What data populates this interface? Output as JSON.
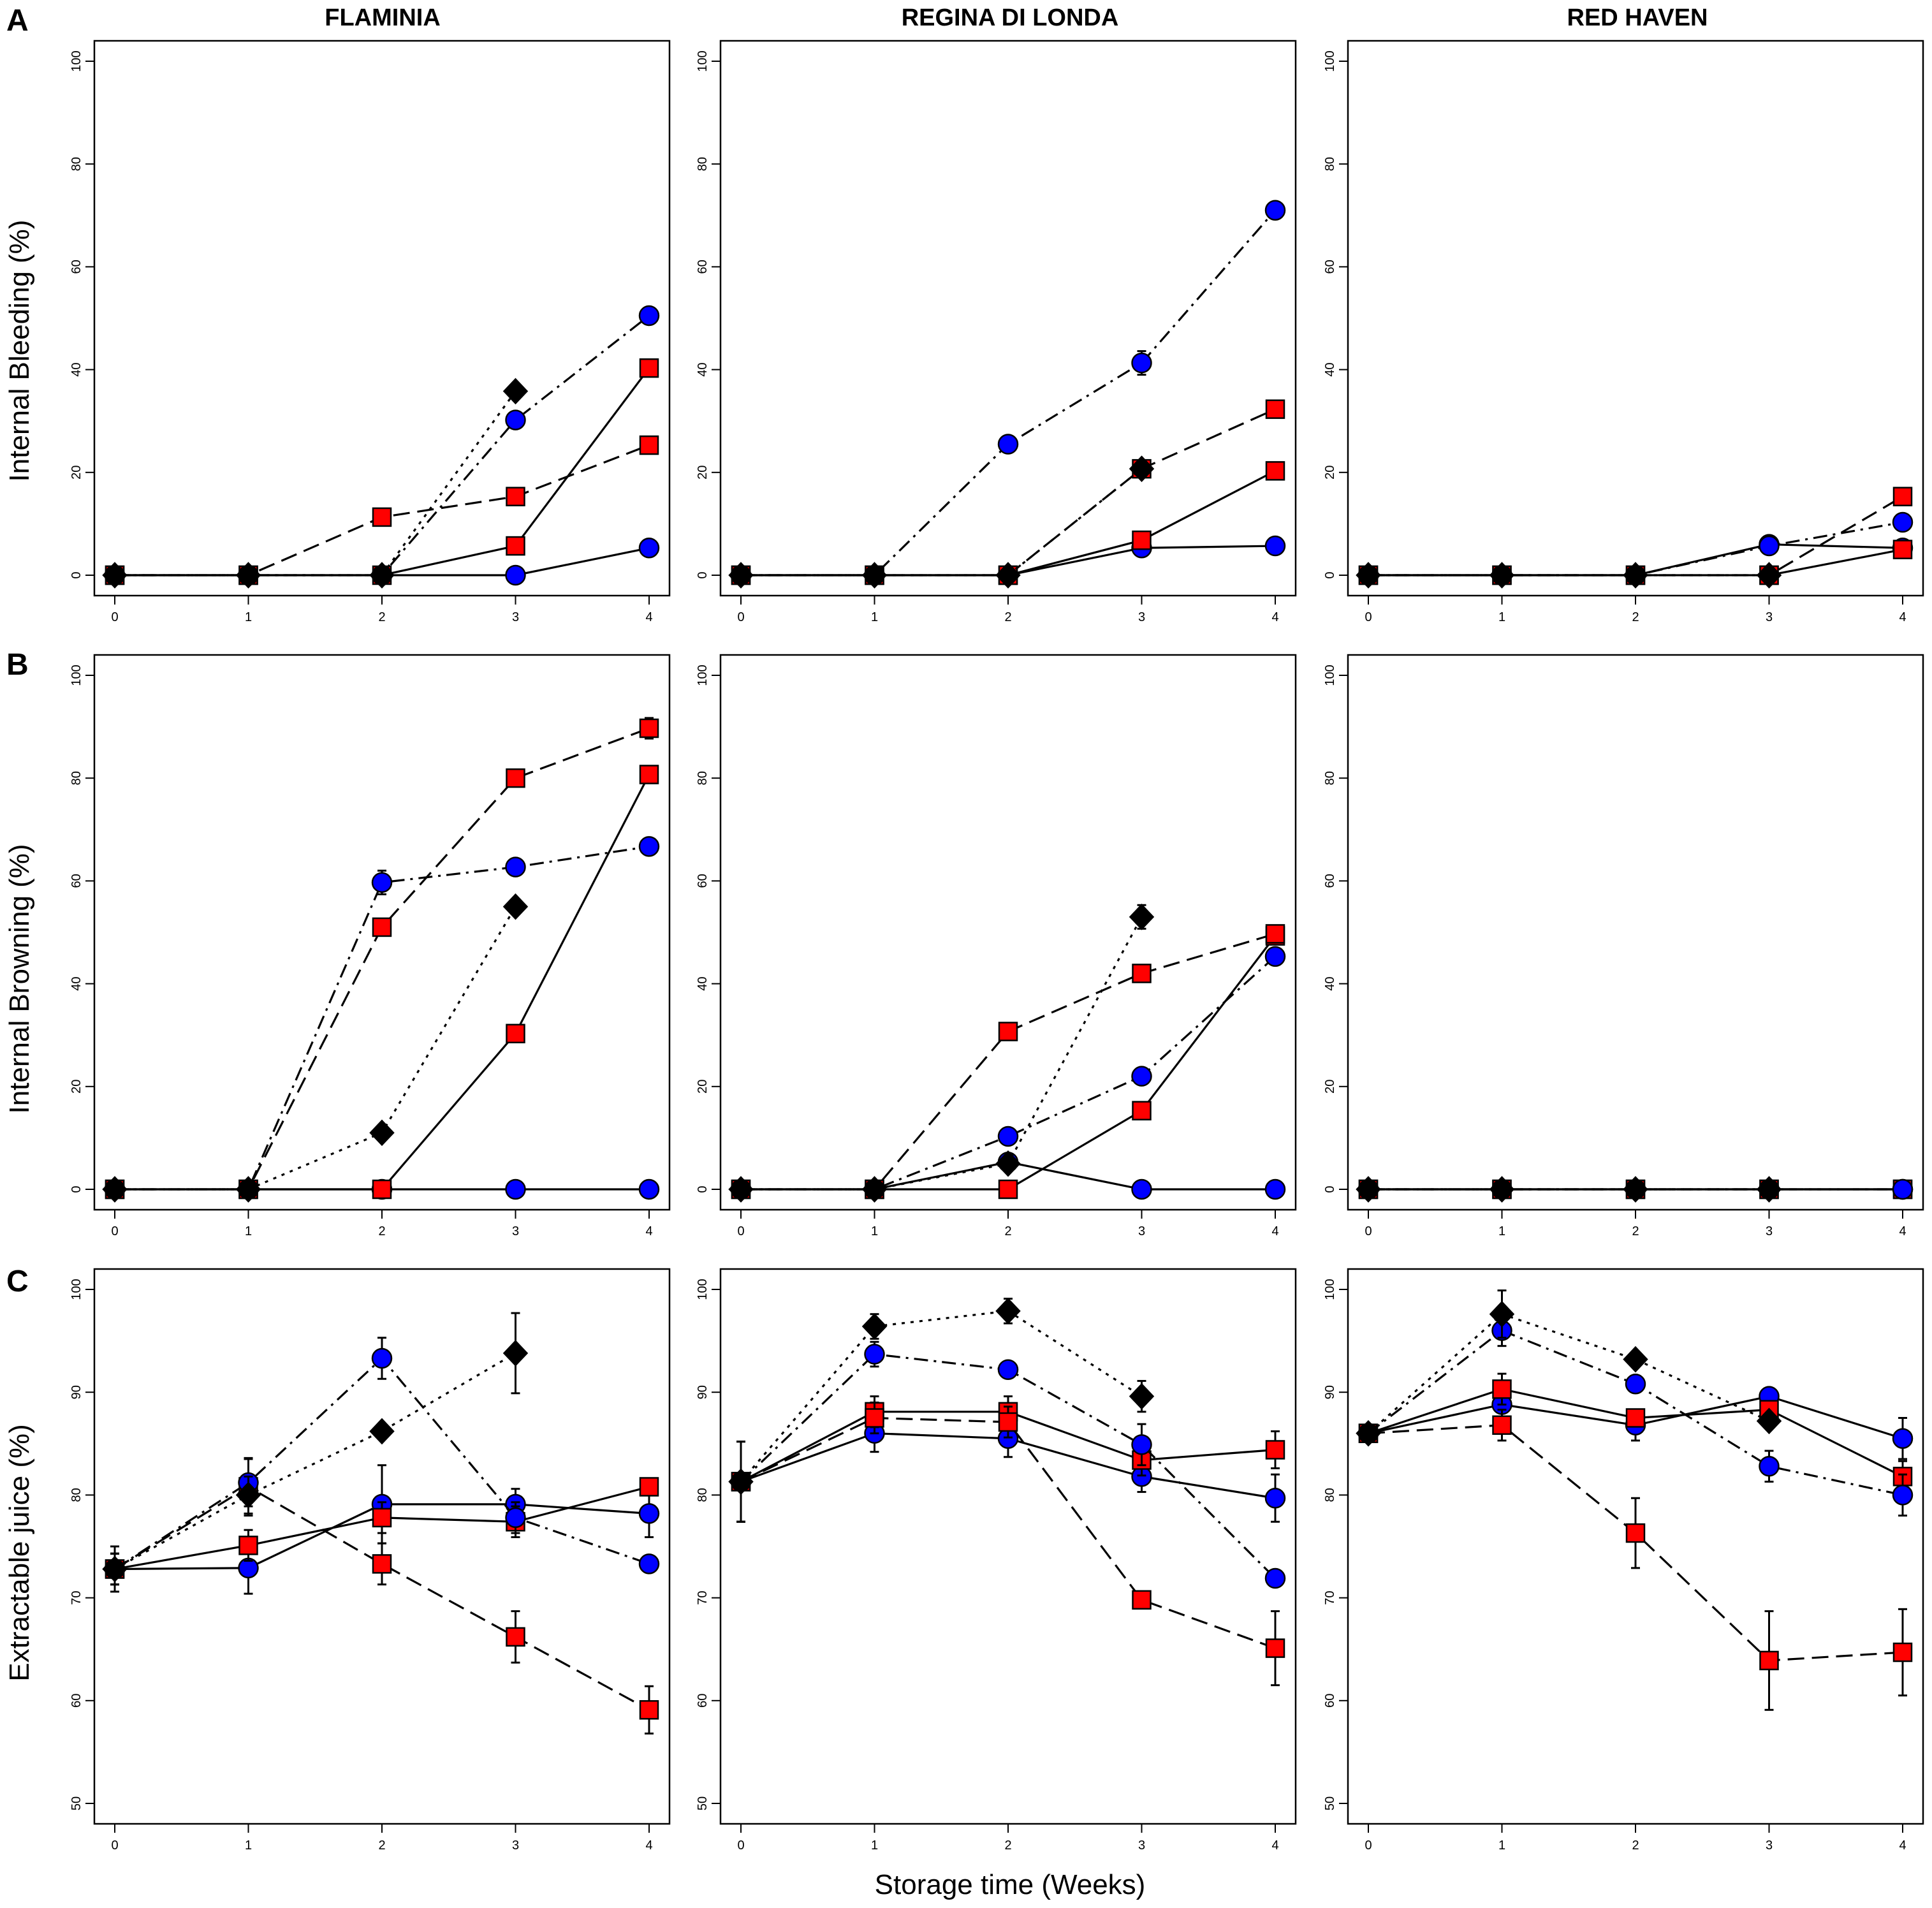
{
  "figure": {
    "x_axis_label": "Storage time (Weeks)",
    "colors": {
      "circle": "#0000ff",
      "square": "#ff0000",
      "diamond": "#000000",
      "line": "#000000"
    }
  },
  "chart_data": [
    {
      "type": "line",
      "row": "A",
      "cultivar": "FLAMINIA",
      "title": "FLAMINIA",
      "ylabel": "Internal Bleeding (%)",
      "xlabel": "Storage time (Weeks)",
      "x": [
        0,
        1,
        2,
        3,
        4
      ],
      "xlim": [
        0,
        4
      ],
      "ylim": [
        0,
        100
      ],
      "yticks": [
        0,
        20,
        40,
        60,
        80,
        100
      ],
      "series": [
        {
          "marker": "circle",
          "line": "solid",
          "values": [
            0,
            0,
            0,
            0,
            5.3
          ],
          "err": [
            0,
            0,
            0,
            0,
            0
          ]
        },
        {
          "marker": "square",
          "line": "solid",
          "values": [
            0,
            0,
            0,
            5.7,
            40.3
          ],
          "err": [
            0,
            0,
            0,
            0,
            1.5
          ]
        },
        {
          "marker": "square",
          "line": "dashed",
          "values": [
            0,
            0,
            11.3,
            15.3,
            25.3
          ],
          "err": [
            0,
            0,
            0,
            0,
            0
          ]
        },
        {
          "marker": "circle",
          "line": "dashdot",
          "values": [
            0,
            0,
            0,
            30.2,
            50.5
          ],
          "err": [
            0,
            0,
            0,
            0,
            0
          ]
        },
        {
          "marker": "diamond",
          "line": "dotted",
          "values": [
            0,
            0,
            0,
            35.8,
            null
          ],
          "err": [
            0,
            0,
            0,
            0,
            0
          ]
        }
      ]
    },
    {
      "type": "line",
      "row": "A",
      "cultivar": "REGINA DI LONDA",
      "title": "REGINA DI LONDA",
      "ylabel": "Internal Bleeding (%)",
      "xlabel": "Storage time (Weeks)",
      "x": [
        0,
        1,
        2,
        3,
        4
      ],
      "xlim": [
        0,
        4
      ],
      "ylim": [
        0,
        100
      ],
      "yticks": [
        0,
        20,
        40,
        60,
        80,
        100
      ],
      "series": [
        {
          "marker": "circle",
          "line": "solid",
          "values": [
            0,
            0,
            0,
            5.3,
            5.7
          ],
          "err": [
            0,
            0,
            0,
            0,
            0
          ]
        },
        {
          "marker": "square",
          "line": "solid",
          "values": [
            0,
            0,
            0,
            6.8,
            20.3
          ],
          "err": [
            0,
            0,
            0,
            0,
            0
          ]
        },
        {
          "marker": "square",
          "line": "dashed",
          "values": [
            0,
            0,
            0,
            20.7,
            32.3
          ],
          "err": [
            0,
            0,
            0,
            1.2,
            0
          ]
        },
        {
          "marker": "circle",
          "line": "dashdot",
          "values": [
            0,
            0,
            25.5,
            41.3,
            71.0
          ],
          "err": [
            0,
            0,
            0,
            2.3,
            0
          ]
        },
        {
          "marker": "diamond",
          "line": "dotted",
          "values": [
            0,
            0,
            0,
            20.7,
            null
          ],
          "err": [
            0,
            0,
            0,
            0,
            0
          ]
        }
      ]
    },
    {
      "type": "line",
      "row": "A",
      "cultivar": "RED HAVEN",
      "title": "RED HAVEN",
      "ylabel": "Internal Bleeding (%)",
      "xlabel": "Storage time (Weeks)",
      "x": [
        0,
        1,
        2,
        3,
        4
      ],
      "xlim": [
        0,
        4
      ],
      "ylim": [
        0,
        100
      ],
      "yticks": [
        0,
        20,
        40,
        60,
        80,
        100
      ],
      "series": [
        {
          "marker": "circle",
          "line": "solid",
          "values": [
            0,
            0,
            0,
            6.0,
            5.3
          ],
          "err": [
            0,
            0,
            0,
            0,
            0
          ]
        },
        {
          "marker": "square",
          "line": "solid",
          "values": [
            0,
            0,
            0,
            0,
            5.0
          ],
          "err": [
            0,
            0,
            0,
            0,
            0
          ]
        },
        {
          "marker": "square",
          "line": "dashed",
          "values": [
            0,
            0,
            0,
            0,
            15.3
          ],
          "err": [
            0,
            0,
            0,
            0,
            0
          ]
        },
        {
          "marker": "circle",
          "line": "dashdot",
          "values": [
            0,
            0,
            0,
            5.7,
            10.3
          ],
          "err": [
            0,
            0,
            0,
            0,
            0
          ]
        },
        {
          "marker": "diamond",
          "line": "dotted",
          "values": [
            0,
            0,
            0,
            0,
            null
          ],
          "err": [
            0,
            0,
            0,
            0,
            0
          ]
        }
      ]
    },
    {
      "type": "line",
      "row": "B",
      "cultivar": "FLAMINIA",
      "title": "",
      "ylabel": "Internal Browning (%)",
      "xlabel": "Storage time (Weeks)",
      "x": [
        0,
        1,
        2,
        3,
        4
      ],
      "xlim": [
        0,
        4
      ],
      "ylim": [
        0,
        100
      ],
      "yticks": [
        0,
        20,
        40,
        60,
        80,
        100
      ],
      "series": [
        {
          "marker": "circle",
          "line": "solid",
          "values": [
            0,
            0,
            0,
            0,
            0
          ],
          "err": [
            0,
            0,
            0,
            0,
            0
          ]
        },
        {
          "marker": "square",
          "line": "solid",
          "values": [
            0,
            0,
            0,
            30.3,
            80.7
          ],
          "err": [
            0,
            0,
            0,
            0,
            0
          ]
        },
        {
          "marker": "square",
          "line": "dashed",
          "values": [
            0,
            0,
            51.0,
            80.0,
            89.7
          ],
          "err": [
            0,
            0,
            1.5,
            0,
            2.0
          ]
        },
        {
          "marker": "circle",
          "line": "dashdot",
          "values": [
            0,
            0,
            59.7,
            62.7,
            66.7
          ],
          "err": [
            0,
            0,
            2.3,
            0,
            0
          ]
        },
        {
          "marker": "diamond",
          "line": "dotted",
          "values": [
            0,
            0,
            11.0,
            55.0,
            null
          ],
          "err": [
            0,
            0,
            0,
            0,
            0
          ]
        }
      ]
    },
    {
      "type": "line",
      "row": "B",
      "cultivar": "REGINA DI LONDA",
      "title": "",
      "ylabel": "Internal Browning (%)",
      "xlabel": "Storage time (Weeks)",
      "x": [
        0,
        1,
        2,
        3,
        4
      ],
      "xlim": [
        0,
        4
      ],
      "ylim": [
        0,
        100
      ],
      "yticks": [
        0,
        20,
        40,
        60,
        80,
        100
      ],
      "series": [
        {
          "marker": "circle",
          "line": "solid",
          "values": [
            0,
            0,
            5.3,
            0,
            0
          ],
          "err": [
            0,
            0,
            0,
            0,
            0
          ]
        },
        {
          "marker": "square",
          "line": "solid",
          "values": [
            0,
            0,
            0,
            15.3,
            49.3
          ],
          "err": [
            0,
            0,
            0,
            0,
            0
          ]
        },
        {
          "marker": "square",
          "line": "dashed",
          "values": [
            0,
            0,
            30.7,
            42.0,
            49.7
          ],
          "err": [
            0,
            0,
            0,
            0,
            0
          ]
        },
        {
          "marker": "circle",
          "line": "dashdot",
          "values": [
            0,
            0,
            10.3,
            22.0,
            45.3
          ],
          "err": [
            0,
            0,
            0,
            0,
            0
          ]
        },
        {
          "marker": "diamond",
          "line": "dotted",
          "values": [
            0,
            0,
            5.0,
            53.0,
            null
          ],
          "err": [
            0,
            0,
            0,
            2.3,
            0
          ]
        }
      ]
    },
    {
      "type": "line",
      "row": "B",
      "cultivar": "RED HAVEN",
      "title": "",
      "ylabel": "Internal Browning (%)",
      "xlabel": "Storage time (Weeks)",
      "x": [
        0,
        1,
        2,
        3,
        4
      ],
      "xlim": [
        0,
        4
      ],
      "ylim": [
        0,
        100
      ],
      "yticks": [
        0,
        20,
        40,
        60,
        80,
        100
      ],
      "series": [
        {
          "marker": "circle",
          "line": "solid",
          "values": [
            0,
            0,
            0,
            0,
            0
          ],
          "err": [
            0,
            0,
            0,
            0,
            0
          ]
        },
        {
          "marker": "square",
          "line": "solid",
          "values": [
            0,
            0,
            0,
            0,
            0
          ],
          "err": [
            0,
            0,
            0,
            0,
            0
          ]
        },
        {
          "marker": "square",
          "line": "dashed",
          "values": [
            0,
            0,
            0,
            0,
            0
          ],
          "err": [
            0,
            0,
            0,
            0,
            0
          ]
        },
        {
          "marker": "circle",
          "line": "dashdot",
          "values": [
            0,
            0,
            0,
            0,
            0
          ],
          "err": [
            0,
            0,
            0,
            0,
            0
          ]
        },
        {
          "marker": "diamond",
          "line": "dotted",
          "values": [
            0,
            0,
            0,
            0,
            null
          ],
          "err": [
            0,
            0,
            0,
            0,
            0
          ]
        }
      ]
    },
    {
      "type": "line",
      "row": "C",
      "cultivar": "FLAMINIA",
      "title": "",
      "ylabel": "Extractable juice (%)",
      "xlabel": "Storage time (Weeks)",
      "x": [
        0,
        1,
        2,
        3,
        4
      ],
      "xlim": [
        0,
        4
      ],
      "ylim": [
        50,
        100
      ],
      "yticks": [
        50,
        60,
        70,
        80,
        90,
        100
      ],
      "series": [
        {
          "marker": "circle",
          "line": "solid",
          "values": [
            72.8,
            72.9,
            79.1,
            79.1,
            78.2
          ],
          "err": [
            2.2,
            2.5,
            3.8,
            1.5,
            2.3
          ]
        },
        {
          "marker": "square",
          "line": "solid",
          "values": [
            72.8,
            75.1,
            77.8,
            77.4,
            80.8
          ],
          "err": [
            1.5,
            1.5,
            1.5,
            1.5,
            0
          ]
        },
        {
          "marker": "square",
          "line": "dashed",
          "values": [
            72.8,
            80.8,
            73.3,
            66.2,
            59.1
          ],
          "err": [
            1.5,
            2.8,
            2.0,
            2.5,
            2.3
          ]
        },
        {
          "marker": "circle",
          "line": "dashdot",
          "values": [
            72.8,
            81.2,
            93.3,
            77.8,
            73.3
          ],
          "err": [
            1.5,
            2.3,
            2.0,
            1.5,
            0
          ]
        },
        {
          "marker": "diamond",
          "line": "dotted",
          "values": [
            72.8,
            80.0,
            86.2,
            93.8,
            null
          ],
          "err": [
            1.5,
            1.8,
            0,
            3.9,
            0
          ]
        }
      ]
    },
    {
      "type": "line",
      "row": "C",
      "cultivar": "REGINA DI LONDA",
      "title": "",
      "ylabel": "Extractable juice (%)",
      "xlabel": "Storage time (Weeks)",
      "x": [
        0,
        1,
        2,
        3,
        4
      ],
      "xlim": [
        0,
        4
      ],
      "ylim": [
        50,
        100
      ],
      "yticks": [
        50,
        60,
        70,
        80,
        90,
        100
      ],
      "series": [
        {
          "marker": "circle",
          "line": "solid",
          "values": [
            81.3,
            86.0,
            85.5,
            81.8,
            79.7
          ],
          "err": [
            3.9,
            1.8,
            1.8,
            1.5,
            2.3
          ]
        },
        {
          "marker": "square",
          "line": "solid",
          "values": [
            81.3,
            88.1,
            88.1,
            83.4,
            84.4
          ],
          "err": [
            3.9,
            1.5,
            1.5,
            1.5,
            1.8
          ]
        },
        {
          "marker": "square",
          "line": "dashed",
          "values": [
            81.3,
            87.5,
            87.1,
            69.8,
            65.1
          ],
          "err": [
            3.9,
            1.5,
            1.5,
            0.5,
            3.6
          ]
        },
        {
          "marker": "circle",
          "line": "dashdot",
          "values": [
            81.3,
            93.7,
            92.2,
            84.9,
            71.9
          ],
          "err": [
            3.9,
            1.2,
            0,
            2.0,
            0
          ]
        },
        {
          "marker": "diamond",
          "line": "dotted",
          "values": [
            81.3,
            96.4,
            97.9,
            89.6,
            null
          ],
          "err": [
            3.9,
            1.2,
            1.2,
            1.5,
            0
          ]
        }
      ]
    },
    {
      "type": "line",
      "row": "C",
      "cultivar": "RED HAVEN",
      "title": "",
      "ylabel": "Extractable juice (%)",
      "xlabel": "Storage time (Weeks)",
      "x": [
        0,
        1,
        2,
        3,
        4
      ],
      "xlim": [
        0,
        4
      ],
      "ylim": [
        50,
        100
      ],
      "yticks": [
        50,
        60,
        70,
        80,
        90,
        100
      ],
      "series": [
        {
          "marker": "circle",
          "line": "solid",
          "values": [
            86.0,
            88.8,
            86.8,
            89.6,
            85.5
          ],
          "err": [
            0,
            1.5,
            1.5,
            0,
            2.0
          ]
        },
        {
          "marker": "square",
          "line": "solid",
          "values": [
            86.0,
            90.3,
            87.5,
            88.3,
            81.8
          ],
          "err": [
            0,
            1.5,
            0,
            0,
            1.5
          ]
        },
        {
          "marker": "square",
          "line": "dashed",
          "values": [
            86.0,
            86.8,
            76.3,
            63.9,
            64.7
          ],
          "err": [
            0,
            1.5,
            3.4,
            4.8,
            4.2
          ]
        },
        {
          "marker": "circle",
          "line": "dashdot",
          "values": [
            86.0,
            96.0,
            90.8,
            82.8,
            80.0
          ],
          "err": [
            0,
            1.5,
            0,
            1.5,
            2.0
          ]
        },
        {
          "marker": "diamond",
          "line": "dotted",
          "values": [
            86.0,
            97.6,
            93.2,
            87.2,
            null
          ],
          "err": [
            0,
            2.3,
            0,
            0,
            0
          ]
        }
      ]
    }
  ]
}
